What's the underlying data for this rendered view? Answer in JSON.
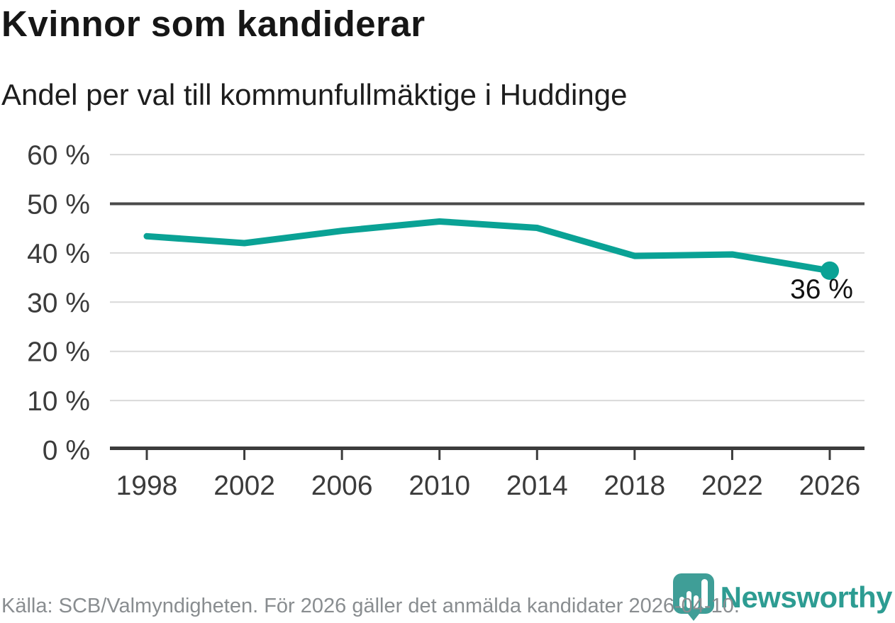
{
  "chart_data": {
    "type": "line",
    "title": "Kvinnor som kandiderar",
    "subtitle": "Andel per val till kommunfullmäktige i Huddinge",
    "x": [
      1998,
      2002,
      2006,
      2010,
      2014,
      2018,
      2022,
      2026
    ],
    "xtick_labels": [
      "1998",
      "2002",
      "2006",
      "2010",
      "2014",
      "2018",
      "2022",
      "2026"
    ],
    "values": [
      43.4,
      42.0,
      44.5,
      46.4,
      45.1,
      39.4,
      39.7,
      36.4
    ],
    "ylim": [
      0,
      60
    ],
    "ytick_step": 10,
    "ytick_labels": [
      "0 %",
      "10 %",
      "20 %",
      "30 %",
      "40 %",
      "50 %",
      "60 %"
    ],
    "grid": true,
    "reference_line": 50,
    "end_label": "36 %",
    "endpoint_marker": true
  },
  "colors": {
    "line": "#0aa295",
    "grid": "#d9d9d9",
    "reference_line": "#4a4a4a",
    "axis": "#3c3c3c",
    "brand_teal": "#2d9c92",
    "logo_pin": "#3f9e97"
  },
  "footer": {
    "source": "Källa: SCB/Valmyndigheten. För 2026 gäller det anmälda kandidater 2026-04-10.",
    "brand": "Newsworthy"
  }
}
